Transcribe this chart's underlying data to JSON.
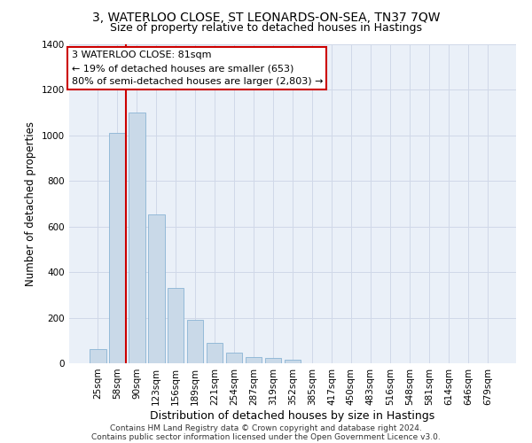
{
  "title_line1": "3, WATERLOO CLOSE, ST LEONARDS-ON-SEA, TN37 7QW",
  "title_line2": "Size of property relative to detached houses in Hastings",
  "xlabel": "Distribution of detached houses by size in Hastings",
  "ylabel": "Number of detached properties",
  "bar_labels": [
    "25sqm",
    "58sqm",
    "90sqm",
    "123sqm",
    "156sqm",
    "189sqm",
    "221sqm",
    "254sqm",
    "287sqm",
    "319sqm",
    "352sqm",
    "385sqm",
    "417sqm",
    "450sqm",
    "483sqm",
    "516sqm",
    "548sqm",
    "581sqm",
    "614sqm",
    "646sqm",
    "679sqm"
  ],
  "bar_values": [
    62,
    1010,
    1100,
    653,
    330,
    190,
    90,
    47,
    28,
    22,
    15,
    0,
    0,
    0,
    0,
    0,
    0,
    0,
    0,
    0,
    0
  ],
  "bar_color": "#c9d9e8",
  "bar_edgecolor": "#8ab4d4",
  "vline_color": "#cc0000",
  "annotation_text": "3 WATERLOO CLOSE: 81sqm\n← 19% of detached houses are smaller (653)\n80% of semi-detached houses are larger (2,803) →",
  "annotation_box_color": "#ffffff",
  "annotation_box_edgecolor": "#cc0000",
  "ylim": [
    0,
    1400
  ],
  "yticks": [
    0,
    200,
    400,
    600,
    800,
    1000,
    1200,
    1400
  ],
  "footnote_line1": "Contains HM Land Registry data © Crown copyright and database right 2024.",
  "footnote_line2": "Contains public sector information licensed under the Open Government Licence v3.0.",
  "grid_color": "#d0d8e8",
  "bg_color": "#eaf0f8",
  "title_fontsize": 10,
  "subtitle_fontsize": 9,
  "tick_fontsize": 7.5,
  "ylabel_fontsize": 8.5,
  "xlabel_fontsize": 9,
  "annotation_fontsize": 8,
  "footnote_fontsize": 6.5
}
